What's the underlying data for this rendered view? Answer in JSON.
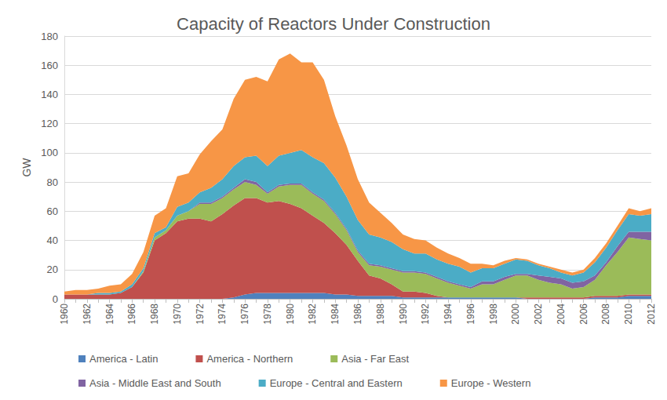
{
  "chart_data": {
    "type": "area",
    "title": "Capacity of Reactors Under Construction",
    "y_label": "GW",
    "stacked": true,
    "grid": true,
    "legend": "bottom",
    "categories": [
      1960,
      null,
      1962,
      null,
      1964,
      null,
      1966,
      null,
      1968,
      null,
      1970,
      null,
      1972,
      null,
      1974,
      null,
      1976,
      null,
      1978,
      null,
      1980,
      null,
      1982,
      null,
      1984,
      null,
      1986,
      null,
      1988,
      null,
      1990,
      null,
      1992,
      null,
      1994,
      null,
      1996,
      null,
      1998,
      null,
      2000,
      null,
      2002,
      null,
      2004,
      null,
      2006,
      null,
      2008,
      null,
      2010,
      null,
      2012
    ],
    "ylim": [
      0,
      180
    ],
    "yticks": [
      0,
      20,
      40,
      60,
      80,
      100,
      120,
      140,
      160,
      180
    ],
    "series": [
      {
        "name": "America - Latin",
        "color": "#4f81bd",
        "values": [
          0,
          0,
          0,
          0,
          0,
          0,
          0,
          0,
          0,
          0,
          0,
          0,
          0,
          0,
          0,
          1,
          3,
          4,
          4,
          4,
          4,
          4,
          4,
          4,
          3,
          3,
          2,
          2,
          2,
          2,
          1,
          1,
          1,
          1,
          1,
          1,
          1,
          1,
          1,
          1,
          1,
          0,
          0,
          0,
          0,
          0,
          0,
          1,
          1,
          1,
          2,
          2,
          2
        ]
      },
      {
        "name": "America - Northern",
        "color": "#c0504d",
        "values": [
          3,
          3,
          3,
          3,
          3,
          4,
          8,
          18,
          40,
          45,
          53,
          55,
          55,
          53,
          58,
          63,
          66,
          65,
          62,
          63,
          61,
          58,
          53,
          48,
          42,
          34,
          24,
          14,
          12,
          8,
          4,
          4,
          3,
          1,
          0,
          0,
          0,
          0,
          0,
          0,
          0,
          1,
          1,
          1,
          1,
          1,
          1,
          1,
          1,
          1,
          1,
          1,
          1
        ]
      },
      {
        "name": "Asia - Far East",
        "color": "#9bbb59",
        "values": [
          0,
          0,
          0,
          0,
          0,
          0,
          0,
          1,
          2,
          2,
          4,
          5,
          10,
          12,
          11,
          11,
          11,
          9,
          6,
          10,
          13,
          16,
          15,
          15,
          13,
          10,
          6,
          7,
          8,
          10,
          13,
          13,
          13,
          12,
          10,
          8,
          6,
          9,
          9,
          12,
          15,
          15,
          12,
          10,
          9,
          6,
          7,
          11,
          21,
          30,
          39,
          38,
          37
        ]
      },
      {
        "name": "Asia - Middle East and South",
        "color": "#8064a2",
        "values": [
          0,
          0,
          0,
          0,
          0,
          0,
          0,
          0,
          0,
          0,
          0,
          0,
          1,
          1,
          1,
          1,
          2,
          2,
          1,
          1,
          1,
          1,
          1,
          1,
          1,
          1,
          1,
          1,
          1,
          1,
          1,
          1,
          1,
          1,
          1,
          1,
          1,
          2,
          2,
          2,
          1,
          1,
          3,
          4,
          4,
          4,
          4,
          3,
          2,
          4,
          4,
          5,
          6
        ]
      },
      {
        "name": "Europe - Central and Eastern",
        "color": "#4bacc6",
        "values": [
          0,
          0,
          0,
          1,
          1,
          1,
          2,
          2,
          3,
          2,
          6,
          6,
          7,
          10,
          12,
          15,
          15,
          18,
          18,
          20,
          21,
          23,
          24,
          25,
          24,
          22,
          21,
          20,
          19,
          18,
          15,
          12,
          13,
          12,
          12,
          12,
          10,
          9,
          9,
          9,
          10,
          9,
          7,
          6,
          4,
          5,
          6,
          9,
          10,
          11,
          12,
          11,
          12
        ]
      },
      {
        "name": "Europe - Western",
        "color": "#f79646",
        "values": [
          2,
          3,
          3,
          3,
          5,
          5,
          7,
          11,
          12,
          13,
          21,
          20,
          26,
          32,
          34,
          46,
          53,
          54,
          58,
          66,
          68,
          60,
          65,
          57,
          42,
          35,
          28,
          22,
          17,
          13,
          10,
          10,
          9,
          8,
          7,
          6,
          6,
          3,
          2,
          2,
          1,
          1,
          1,
          1,
          2,
          2,
          2,
          3,
          3,
          3,
          4,
          3,
          4
        ]
      }
    ]
  }
}
